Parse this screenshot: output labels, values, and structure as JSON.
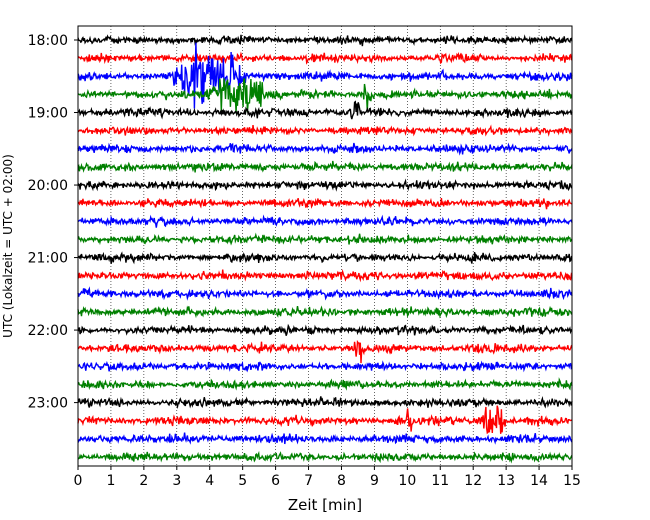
{
  "chart_data": {
    "type": "line",
    "subtype": "helicorder-seismogram",
    "xlabel": "Zeit  [min]",
    "ylabel": "UTC (Lokalzeit = UTC + 02:00)",
    "xlim": [
      0,
      15
    ],
    "x_ticks": [
      0,
      1,
      2,
      3,
      4,
      5,
      6,
      7,
      8,
      9,
      10,
      11,
      12,
      13,
      14,
      15
    ],
    "x_tick_labels": [
      "0",
      "1",
      "2",
      "3",
      "4",
      "5",
      "6",
      "7",
      "8",
      "9",
      "10",
      "11",
      "12",
      "13",
      "14",
      "15"
    ],
    "y_tick_labels": [
      "18:00",
      "19:00",
      "20:00",
      "21:00",
      "22:00",
      "23:00"
    ],
    "minutes_per_line": 15,
    "start_time": "18:00",
    "end_time": "24:00",
    "line_color_cycle": [
      "#000000",
      "#ff0000",
      "#0000ff",
      "#008000"
    ],
    "vertical_grid": "dotted",
    "events": [
      {
        "line": 2,
        "start_min": 2.8,
        "end_min": 5.2,
        "peak_min": 4.0,
        "amplitude": "large"
      },
      {
        "line": 3,
        "start_min": 3.2,
        "end_min": 5.6,
        "peak_min": 5.0,
        "amplitude": "medium"
      },
      {
        "line": 3,
        "start_min": 8.6,
        "end_min": 9.0,
        "peak_min": 8.8,
        "amplitude": "small"
      },
      {
        "line": 4,
        "start_min": 8.2,
        "end_min": 8.6,
        "peak_min": 8.4,
        "amplitude": "small"
      },
      {
        "line": 17,
        "start_min": 8.4,
        "end_min": 8.8,
        "peak_min": 8.55,
        "amplitude": "small"
      },
      {
        "line": 21,
        "start_min": 12.2,
        "end_min": 13.0,
        "peak_min": 12.6,
        "amplitude": "medium"
      },
      {
        "line": 21,
        "start_min": 9.9,
        "end_min": 10.2,
        "peak_min": 10.05,
        "amplitude": "small"
      }
    ]
  }
}
